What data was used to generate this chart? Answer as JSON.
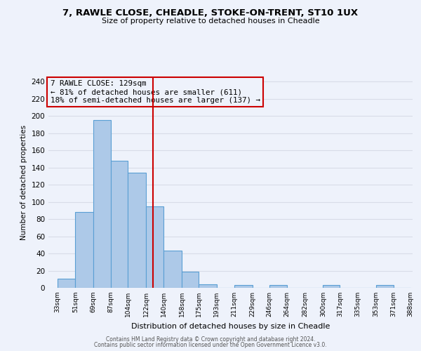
{
  "title_line1": "7, RAWLE CLOSE, CHEADLE, STOKE-ON-TRENT, ST10 1UX",
  "title_line2": "Size of property relative to detached houses in Cheadle",
  "xlabel": "Distribution of detached houses by size in Cheadle",
  "ylabel": "Number of detached properties",
  "bar_edges": [
    33,
    51,
    69,
    87,
    104,
    122,
    140,
    158,
    175,
    193,
    211,
    229,
    246,
    264,
    282,
    300,
    317,
    335,
    353,
    371,
    388
  ],
  "bar_heights": [
    11,
    88,
    195,
    148,
    134,
    95,
    43,
    19,
    4,
    0,
    3,
    0,
    3,
    0,
    0,
    3,
    0,
    0,
    3,
    0
  ],
  "bar_color": "#adc9e8",
  "bar_edge_color": "#5a9fd4",
  "ref_line_x": 129,
  "ref_line_color": "#cc0000",
  "annotation_box_text": "7 RAWLE CLOSE: 129sqm\n← 81% of detached houses are smaller (611)\n18% of semi-detached houses are larger (137) →",
  "annotation_box_edge_color": "#cc0000",
  "ylim": [
    0,
    245
  ],
  "yticks": [
    0,
    20,
    40,
    60,
    80,
    100,
    120,
    140,
    160,
    180,
    200,
    220,
    240
  ],
  "xtick_labels": [
    "33sqm",
    "51sqm",
    "69sqm",
    "87sqm",
    "104sqm",
    "122sqm",
    "140sqm",
    "158sqm",
    "175sqm",
    "193sqm",
    "211sqm",
    "229sqm",
    "246sqm",
    "264sqm",
    "282sqm",
    "300sqm",
    "317sqm",
    "335sqm",
    "353sqm",
    "371sqm",
    "388sqm"
  ],
  "footer_line1": "Contains HM Land Registry data © Crown copyright and database right 2024.",
  "footer_line2": "Contains public sector information licensed under the Open Government Licence v3.0.",
  "bg_color": "#eef2fb",
  "grid_color": "#d8dce8"
}
